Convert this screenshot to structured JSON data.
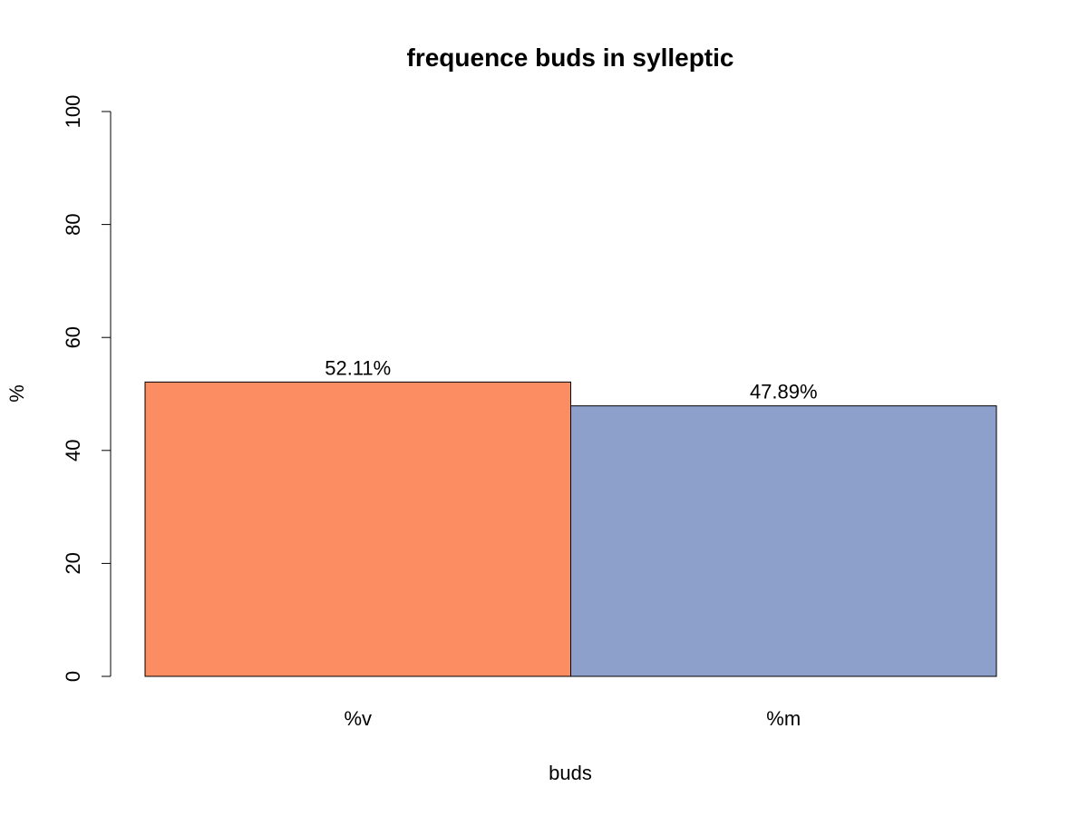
{
  "chart_data": {
    "type": "bar",
    "title": "frequence buds in sylleptic",
    "xlabel": "buds",
    "ylabel": "%",
    "categories": [
      "%v",
      "%m"
    ],
    "values": [
      52.11,
      47.89
    ],
    "data_labels": [
      "52.11%",
      "47.89%"
    ],
    "colors": [
      "#FC8D62",
      "#8DA0CB"
    ],
    "ylim": [
      0,
      100
    ],
    "yticks": [
      0,
      20,
      40,
      60,
      80,
      100
    ],
    "grid": false,
    "legend": "none"
  }
}
